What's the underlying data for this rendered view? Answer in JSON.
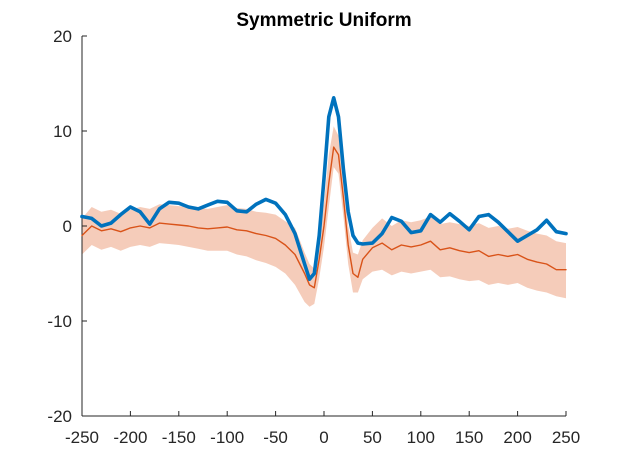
{
  "chart_data": {
    "type": "line",
    "title": "Symmetric Uniform",
    "xlabel": "",
    "ylabel": "",
    "xlim": [
      -250,
      250
    ],
    "ylim": [
      -20,
      20
    ],
    "grid": false,
    "legend": "none",
    "x_ticks": [
      -250,
      -200,
      -150,
      -100,
      -50,
      0,
      50,
      100,
      150,
      200,
      250
    ],
    "y_ticks": [
      -20,
      -10,
      0,
      10,
      20
    ],
    "x_tick_labels": [
      "-250",
      "-200",
      "-150",
      "-100",
      "-50",
      "0",
      "50",
      "100",
      "150",
      "200",
      "250"
    ],
    "y_tick_labels": [
      "-20",
      "-10",
      "0",
      "10",
      "20"
    ],
    "x": [
      -250,
      -240,
      -230,
      -220,
      -210,
      -200,
      -190,
      -180,
      -170,
      -160,
      -150,
      -140,
      -130,
      -120,
      -110,
      -100,
      -90,
      -80,
      -70,
      -60,
      -50,
      -40,
      -30,
      -20,
      -15,
      -10,
      -5,
      0,
      5,
      10,
      15,
      20,
      25,
      30,
      35,
      40,
      50,
      60,
      70,
      80,
      90,
      100,
      110,
      120,
      130,
      140,
      150,
      160,
      170,
      180,
      190,
      200,
      210,
      220,
      230,
      240,
      250
    ],
    "series": [
      {
        "color": "#0072BD",
        "values": [
          1.0,
          0.8,
          0.0,
          0.3,
          1.2,
          2.0,
          1.5,
          0.2,
          1.8,
          2.5,
          2.4,
          2.0,
          1.8,
          2.2,
          2.6,
          2.5,
          1.6,
          1.5,
          2.3,
          2.8,
          2.4,
          1.2,
          -0.8,
          -4.0,
          -5.6,
          -5.0,
          -1.0,
          5.0,
          11.5,
          13.5,
          11.5,
          6.0,
          1.5,
          -1.0,
          -1.8,
          -1.9,
          -1.8,
          -0.8,
          0.9,
          0.5,
          -0.7,
          -0.5,
          1.2,
          0.4,
          1.3,
          0.5,
          -0.4,
          1.0,
          1.2,
          0.4,
          -0.6,
          -1.6,
          -1.0,
          -0.4,
          0.6,
          -0.6,
          -0.8
        ]
      },
      {
        "color": "#D95319",
        "band_color": "#F4C6B3",
        "values": [
          -1.0,
          0.0,
          -0.5,
          -0.3,
          -0.6,
          -0.2,
          0.0,
          -0.2,
          0.3,
          0.2,
          0.1,
          0.0,
          -0.2,
          -0.3,
          -0.2,
          -0.1,
          -0.4,
          -0.5,
          -0.8,
          -1.0,
          -1.3,
          -2.0,
          -3.0,
          -5.0,
          -6.2,
          -6.5,
          -3.5,
          0.0,
          4.5,
          8.3,
          7.5,
          3.0,
          -2.0,
          -5.0,
          -5.4,
          -3.5,
          -2.3,
          -1.8,
          -2.5,
          -2.0,
          -2.2,
          -2.0,
          -1.6,
          -2.5,
          -2.3,
          -2.6,
          -2.8,
          -2.6,
          -3.2,
          -3.0,
          -3.2,
          -3.0,
          -3.5,
          -3.8,
          -4.0,
          -4.6,
          -4.6
        ],
        "lower": [
          -3.0,
          -2.0,
          -2.5,
          -2.2,
          -2.6,
          -2.2,
          -2.0,
          -2.2,
          -1.8,
          -1.9,
          -2.0,
          -2.2,
          -2.4,
          -2.6,
          -2.6,
          -2.6,
          -3.0,
          -3.2,
          -3.6,
          -3.9,
          -4.3,
          -5.0,
          -6.2,
          -8.0,
          -8.5,
          -8.2,
          -5.5,
          -2.2,
          2.0,
          6.2,
          5.5,
          1.0,
          -4.0,
          -7.0,
          -7.0,
          -5.6,
          -4.8,
          -4.6,
          -5.2,
          -4.8,
          -5.0,
          -4.8,
          -4.6,
          -5.4,
          -5.3,
          -5.6,
          -5.8,
          -5.7,
          -6.2,
          -6.0,
          -6.2,
          -6.0,
          -6.5,
          -6.8,
          -7.0,
          -7.4,
          -7.6
        ],
        "upper": [
          0.8,
          2.0,
          1.5,
          1.7,
          1.3,
          1.7,
          2.0,
          1.8,
          2.3,
          2.2,
          2.1,
          2.0,
          1.9,
          1.8,
          2.0,
          2.2,
          1.9,
          1.8,
          1.5,
          1.4,
          1.2,
          0.5,
          -0.2,
          -2.8,
          -4.0,
          -4.5,
          -1.5,
          2.5,
          7.5,
          10.5,
          9.5,
          5.0,
          0.0,
          -2.8,
          -3.0,
          -1.5,
          -0.2,
          0.8,
          0.0,
          0.6,
          0.4,
          0.6,
          1.0,
          0.2,
          0.4,
          0.2,
          0.0,
          0.3,
          -0.2,
          0.0,
          -0.3,
          -0.1,
          -0.5,
          -0.8,
          -1.0,
          -1.6,
          -1.8
        ]
      }
    ]
  }
}
